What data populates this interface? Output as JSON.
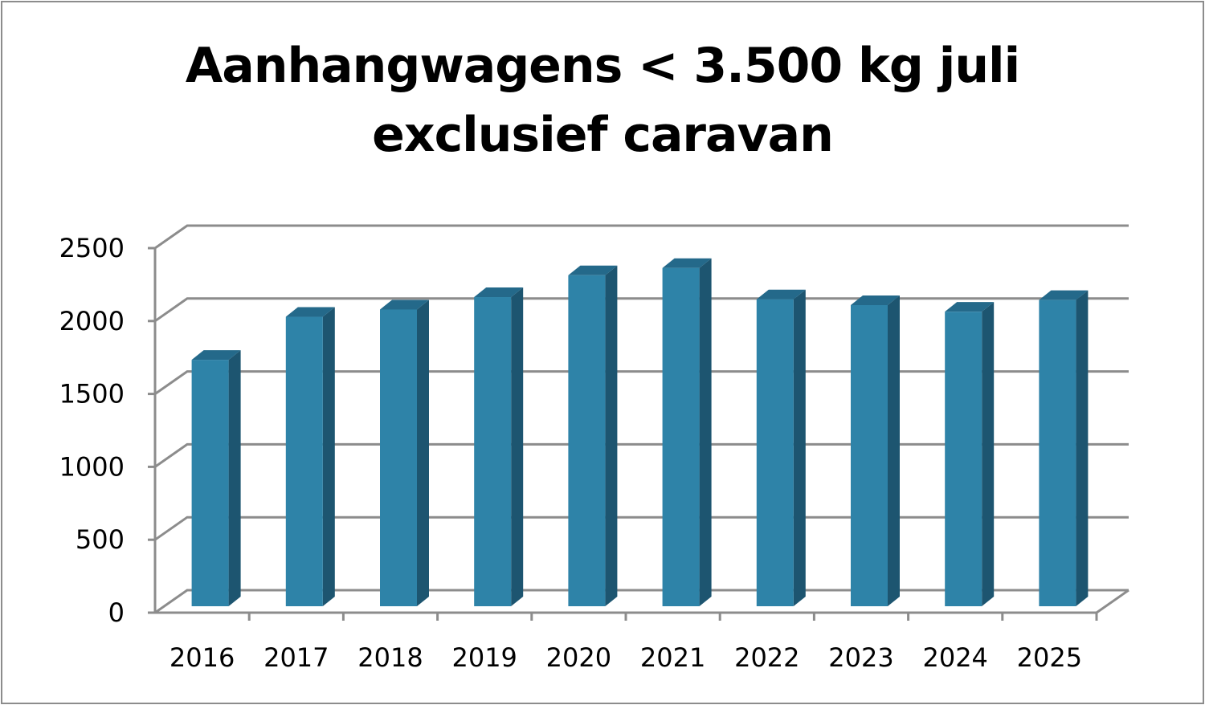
{
  "chart_data": {
    "type": "bar",
    "title_lines": [
      "Aanhangwagens < 3.500 kg juli",
      "exclusief caravan"
    ],
    "categories": [
      "2016",
      "2017",
      "2018",
      "2019",
      "2020",
      "2021",
      "2022",
      "2023",
      "2024",
      "2025"
    ],
    "series": [
      {
        "values": [
          1690,
          1985,
          2035,
          2120,
          2270,
          2320,
          2105,
          2065,
          2020,
          2100
        ]
      }
    ],
    "ylim": [
      0,
      2500
    ],
    "yticks": [
      "0",
      "500",
      "1000",
      "1500",
      "2000",
      "2500"
    ],
    "grid": true,
    "legend": "none",
    "colors": {
      "bar_front": "#2e83a8",
      "bar_side": "#1d5570",
      "bar_top": "#24698a",
      "grid": "#8c8c8c"
    }
  }
}
